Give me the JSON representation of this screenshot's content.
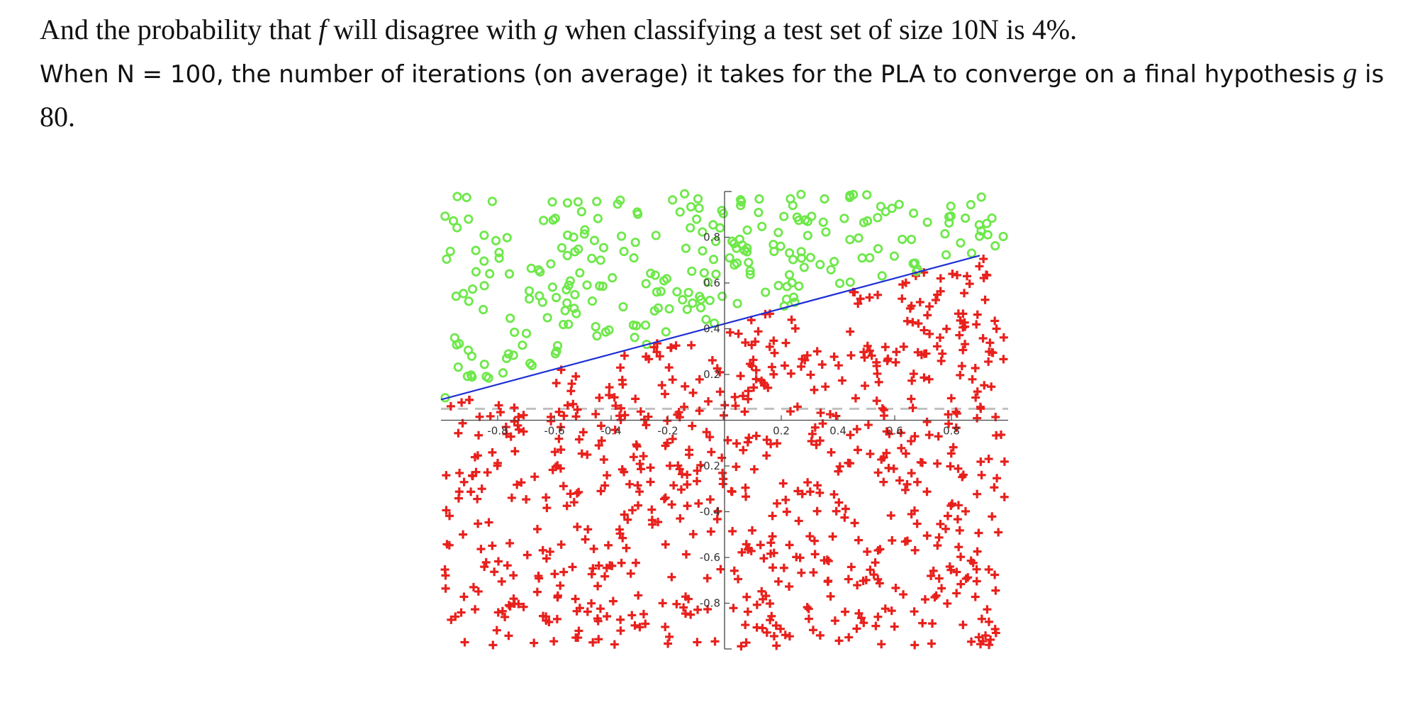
{
  "text": {
    "line1": {
      "part1": "And the probability that ",
      "f": "f",
      "part2": " will disagree with ",
      "g": "g",
      "part3": " when classifying a test set of size 10N is 4%."
    },
    "line2": {
      "part1": "When N = 100, the number of iterations (on average) it takes for the PLA to converge on a final hypothesis ",
      "g": "g",
      "part2": " is"
    },
    "line3": "80."
  },
  "colors": {
    "positive": "#e8201c",
    "negative": "#6ee84a",
    "hypothesis_line": "#1d2fd6",
    "target_line": "#c0c0c0",
    "axes": "#444444"
  },
  "chart_data": {
    "type": "scatter",
    "title": "",
    "xlabel": "",
    "ylabel": "",
    "xlim": [
      -1,
      1
    ],
    "ylim": [
      -1,
      1
    ],
    "grid": false,
    "x_ticks": [
      "-0.8",
      "-0.6",
      "-0.4",
      "-0.2",
      "0.2",
      "0.4",
      "0.6",
      "0.8"
    ],
    "x_tick_values": [
      -0.8,
      -0.6,
      -0.4,
      -0.2,
      0.2,
      0.4,
      0.6,
      0.8
    ],
    "y_ticks": [
      "0.8",
      "0.6",
      "0.4",
      "0.2",
      "-0.2",
      "-0.4",
      "-0.6",
      "-0.8"
    ],
    "y_tick_values": [
      0.8,
      0.6,
      0.4,
      0.2,
      -0.2,
      -0.4,
      -0.6,
      -0.8
    ],
    "hypothesis_g": {
      "x": [
        -1,
        0.9
      ],
      "y": [
        0.09,
        0.72
      ]
    },
    "target_f": {
      "x": [
        -1,
        1
      ],
      "y": [
        0.05,
        0.05
      ]
    },
    "series": [
      {
        "marker": "o",
        "label": "-1",
        "count": 300
      },
      {
        "marker": "+",
        "label": "+1",
        "count": 700
      }
    ],
    "n_points": 1000,
    "seed": 13
  }
}
